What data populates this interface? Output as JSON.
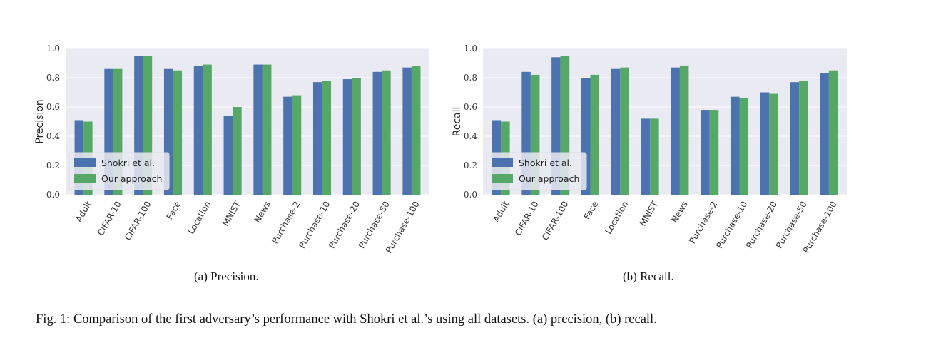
{
  "colors": {
    "series1": "#4c72b0",
    "series2": "#55a868",
    "plot_bg": "#eaeaf2",
    "grid": "#ffffff"
  },
  "chart_data": [
    {
      "type": "bar",
      "categories": [
        "Adult",
        "CIFAR-10",
        "CIFAR-100",
        "Face",
        "Location",
        "MNIST",
        "News",
        "Purchase-2",
        "Purchase-10",
        "Purchase-20",
        "Purchase-50",
        "Purchase-100"
      ],
      "series": [
        {
          "name": "Shokri et al.",
          "values": [
            0.51,
            0.86,
            0.95,
            0.86,
            0.88,
            0.54,
            0.89,
            0.67,
            0.77,
            0.79,
            0.84,
            0.87
          ]
        },
        {
          "name": "Our approach",
          "values": [
            0.5,
            0.86,
            0.95,
            0.85,
            0.89,
            0.6,
            0.89,
            0.68,
            0.78,
            0.8,
            0.85,
            0.88
          ]
        }
      ],
      "ylabel": "Precision",
      "ylim": [
        0,
        1.0
      ],
      "yticks": [
        "0.0",
        "0.2",
        "0.4",
        "0.6",
        "0.8",
        "1.0"
      ],
      "legend_position": "lower-left",
      "grid": true
    },
    {
      "type": "bar",
      "categories": [
        "Adult",
        "CIFAR-10",
        "CIFAR-100",
        "Face",
        "Location",
        "MNIST",
        "News",
        "Purchase-2",
        "Purchase-10",
        "Purchase-20",
        "Purchase-50",
        "Purchase-100"
      ],
      "series": [
        {
          "name": "Shokri et al.",
          "values": [
            0.51,
            0.84,
            0.94,
            0.8,
            0.86,
            0.52,
            0.87,
            0.58,
            0.67,
            0.7,
            0.77,
            0.83
          ]
        },
        {
          "name": "Our approach",
          "values": [
            0.5,
            0.82,
            0.95,
            0.82,
            0.87,
            0.52,
            0.88,
            0.58,
            0.66,
            0.69,
            0.78,
            0.85
          ]
        }
      ],
      "ylabel": "Recall",
      "ylim": [
        0,
        1.0
      ],
      "yticks": [
        "0.0",
        "0.2",
        "0.4",
        "0.6",
        "0.8",
        "1.0"
      ],
      "legend_position": "lower-left",
      "grid": true
    }
  ],
  "captions": {
    "sub_a": "(a) Precision.",
    "sub_b": "(b) Recall.",
    "figure": "Fig. 1: Comparison of the first adversary’s performance with Shokri et al.’s using all datasets. (a) precision, (b) recall."
  }
}
